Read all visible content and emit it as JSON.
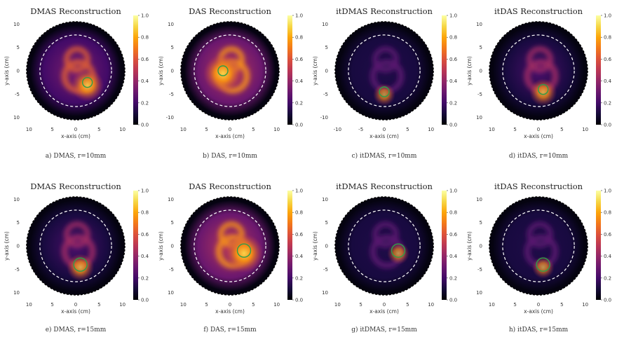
{
  "figure": {
    "panels": [
      {
        "title": "DMAS Reconstruction",
        "caption": "a) DMAS, r=10mm",
        "xlabel": "x-axis (cm)",
        "ylabel": "y-axis (cm)"
      },
      {
        "title": "DAS Reconstruction",
        "caption": "b) DAS, r=10mm",
        "xlabel": "x-axis (cm)",
        "ylabel": "y-axis (cm)"
      },
      {
        "title": "itDMAS Reconstruction",
        "caption": "c) itDMAS, r=10mm",
        "xlabel": "x-axis (cm)",
        "ylabel": "y-axis (cm)"
      },
      {
        "title": "itDAS Reconstruction",
        "caption": "d) itDAS, r=10mm",
        "xlabel": "x-axis (cm)",
        "ylabel": "y-axis (cm)"
      },
      {
        "title": "DMAS Reconstruction",
        "caption": "e) DMAS, r=15mm",
        "xlabel": "x-axis (cm)",
        "ylabel": "y-axis (cm)"
      },
      {
        "title": "DAS Reconstruction",
        "caption": "f) DAS, r=15mm",
        "xlabel": "x-axis (cm)",
        "ylabel": "y-axis (cm)"
      },
      {
        "title": "itDMAS Reconstruction",
        "caption": "g) itDMAS, r=15mm",
        "xlabel": "x-axis (cm)",
        "ylabel": "y-axis (cm)"
      },
      {
        "title": "itDAS Reconstruction",
        "caption": "h) itDAS, r=15mm",
        "xlabel": "x-axis (cm)",
        "ylabel": "y-axis (cm)"
      }
    ]
  },
  "chart_data": [
    {
      "type": "heatmap",
      "title": "DMAS Reconstruction",
      "xlabel": "x-axis (cm)",
      "ylabel": "y-axis (cm)",
      "x_ticks": [
        "10",
        "5",
        "0",
        "5",
        "10"
      ],
      "y_ticks": [
        "10",
        "5",
        "0",
        "-5",
        "10"
      ],
      "colorbar_ticks": [
        "0.0",
        "0.2",
        "0.4",
        "0.6",
        "0.8",
        "1.0"
      ],
      "colormap": "inferno",
      "target_circle_center_cm": [
        2.5,
        -2.5
      ],
      "brightness": "medium"
    },
    {
      "type": "heatmap",
      "title": "DAS Reconstruction",
      "xlabel": "x-axis (cm)",
      "ylabel": "y-axis (cm)",
      "x_ticks": [
        "10",
        "5",
        "0",
        "5",
        "10"
      ],
      "y_ticks": [
        "10",
        "5",
        "0",
        "-5",
        "-10"
      ],
      "colorbar_ticks": [
        "0.0",
        "0.2",
        "0.4",
        "0.6",
        "0.8",
        "1.0"
      ],
      "colormap": "inferno",
      "target_circle_center_cm": [
        -1.5,
        0
      ],
      "brightness": "high"
    },
    {
      "type": "heatmap",
      "title": "itDMAS Reconstruction",
      "xlabel": "x-axis (cm)",
      "ylabel": "y-axis (cm)",
      "x_ticks": [
        "-10",
        "-5",
        "0",
        "5",
        "10"
      ],
      "y_ticks": [
        "10",
        "5",
        "0",
        "-5",
        "-10"
      ],
      "colorbar_ticks": [
        "0.0",
        "0.2",
        "0.4",
        "0.6",
        "0.8",
        "1.0"
      ],
      "colormap": "inferno",
      "target_circle_center_cm": [
        0,
        -4.5
      ],
      "brightness": "low"
    },
    {
      "type": "heatmap",
      "title": "itDAS Reconstruction",
      "xlabel": "x-axis (cm)",
      "ylabel": "y-axis (cm)",
      "x_ticks": [
        "10",
        "5",
        "0",
        "5",
        "10"
      ],
      "y_ticks": [
        "10",
        "5",
        "0",
        "-5",
        "10"
      ],
      "colorbar_ticks": [
        "0.0",
        "0.2",
        "0.4",
        "0.6",
        "0.8",
        "1.0"
      ],
      "colormap": "inferno",
      "target_circle_center_cm": [
        1,
        -4
      ],
      "brightness": "medium-low"
    },
    {
      "type": "heatmap",
      "title": "DMAS Reconstruction",
      "xlabel": "x-axis (cm)",
      "ylabel": "y-axis (cm)",
      "x_ticks": [
        "10",
        "5",
        "0",
        "5",
        "10"
      ],
      "y_ticks": [
        "10",
        "5",
        "0",
        "-5",
        "10"
      ],
      "colorbar_ticks": [
        "0.0",
        "0.2",
        "0.4",
        "0.6",
        "0.8",
        "1.0"
      ],
      "colormap": "inferno",
      "target_circle_center_cm": [
        1,
        -4
      ],
      "brightness": "medium-low"
    },
    {
      "type": "heatmap",
      "title": "DAS Reconstruction",
      "xlabel": "x-axis (cm)",
      "ylabel": "y-axis (cm)",
      "x_ticks": [
        "10",
        "5",
        "0",
        "5",
        "10"
      ],
      "y_ticks": [
        "10",
        "5",
        "0",
        "-5",
        "10"
      ],
      "colorbar_ticks": [
        "0.0",
        "0.2",
        "0.4",
        "0.6",
        "0.8",
        "1.0"
      ],
      "colormap": "inferno",
      "target_circle_center_cm": [
        3,
        -1
      ],
      "brightness": "high"
    },
    {
      "type": "heatmap",
      "title": "itDMAS Reconstruction",
      "xlabel": "x-axis (cm)",
      "ylabel": "y-axis (cm)",
      "x_ticks": [
        "10",
        "5",
        "0",
        "5",
        "10"
      ],
      "y_ticks": [
        "10",
        "5",
        "0",
        "-5",
        "10"
      ],
      "colorbar_ticks": [
        "0.0",
        "0.2",
        "0.4",
        "0.6",
        "0.8",
        "1.0"
      ],
      "colormap": "inferno",
      "target_circle_center_cm": [
        3,
        -1
      ],
      "brightness": "low"
    },
    {
      "type": "heatmap",
      "title": "itDAS Reconstruction",
      "xlabel": "x-axis (cm)",
      "ylabel": "y-axis (cm)",
      "x_ticks": [
        "10",
        "5",
        "0",
        "5",
        "10"
      ],
      "y_ticks": [
        "10",
        "5",
        "0",
        "-5",
        "10"
      ],
      "colorbar_ticks": [
        "0.0",
        "0.2",
        "0.4",
        "0.6",
        "0.8",
        "1.0"
      ],
      "colormap": "inferno",
      "target_circle_center_cm": [
        1,
        -4
      ],
      "brightness": "low"
    }
  ]
}
